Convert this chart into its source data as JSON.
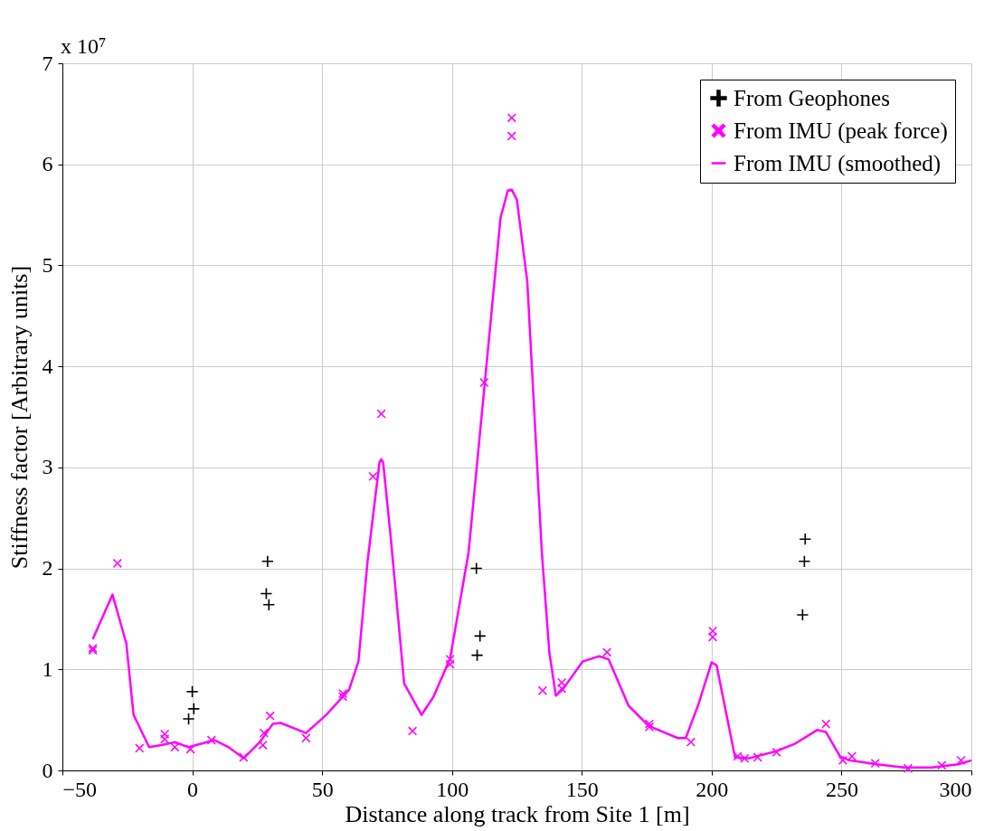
{
  "chart_data": {
    "type": "scatter",
    "xlabel": "Distance along track from Site 1 [m]",
    "ylabel": "Stiffness factor [Arbitrary units]",
    "annotations": [
      "x 10⁷"
    ],
    "xlim": [
      -50,
      300
    ],
    "xticks": [
      -50,
      0,
      50,
      100,
      150,
      200,
      250,
      300
    ],
    "ylim": [
      0,
      7
    ],
    "yticks": [
      0,
      1,
      2,
      3,
      4,
      5,
      6,
      7
    ],
    "grid": true,
    "legend": "top right",
    "series": [
      {
        "name": "From Geophones",
        "type": "scatter",
        "marker": "cross",
        "color": "#000000",
        "x": [
          0,
          0.6,
          -1.4,
          29,
          28.5,
          29.5,
          109.4,
          110.8,
          109.7,
          236,
          235.7,
          235
        ],
        "values": [
          0.78,
          0.61,
          0.51,
          2.07,
          1.75,
          1.64,
          2.0,
          1.33,
          1.14,
          2.29,
          2.07,
          1.54
        ]
      },
      {
        "name": "From IMU (peak force)",
        "type": "scatter",
        "marker": "x",
        "color": "#ff00ff",
        "x": [
          -38.3,
          -38.3,
          -28.8,
          -20.3,
          -10.6,
          -10.6,
          -6.7,
          -0.7,
          7.4,
          19.8,
          27.2,
          27.6,
          30.0,
          43.8,
          58,
          58,
          69.6,
          72.8,
          84.8,
          99.3,
          99.3,
          112.4,
          123,
          123,
          134.9,
          142.3,
          142.3,
          159.7,
          176,
          176,
          192,
          200.4,
          200.4,
          210,
          212.7,
          217.7,
          225,
          244,
          250.5,
          254,
          263,
          275.6,
          288.6,
          296
        ],
        "values": [
          1.19,
          1.21,
          2.05,
          0.22,
          0.36,
          0.31,
          0.23,
          0.21,
          0.3,
          0.13,
          0.25,
          0.37,
          0.54,
          0.32,
          0.73,
          0.76,
          2.91,
          3.53,
          0.39,
          1.1,
          1.05,
          3.84,
          6.46,
          6.28,
          0.79,
          0.87,
          0.81,
          1.17,
          0.46,
          0.43,
          0.28,
          1.38,
          1.32,
          0.14,
          0.12,
          0.13,
          0.18,
          0.46,
          0.1,
          0.14,
          0.07,
          0.02,
          0.05,
          0.1
        ]
      },
      {
        "name": "From IMU (smoothed)",
        "type": "line",
        "marker": "none",
        "color": "#ff00ff",
        "x": [
          -38.3,
          -30.7,
          -25.4,
          -22.6,
          -16.6,
          -12,
          -6.7,
          -1.4,
          8.5,
          14,
          19.8,
          26,
          31,
          34,
          43.8,
          51.6,
          60.4,
          64,
          67.5,
          72.1,
          72.8,
          73.5,
          76.3,
          81.6,
          88.3,
          92.9,
          99.3,
          106.4,
          113.4,
          118.7,
          121.5,
          123,
          125,
          129,
          134.6,
          137.5,
          140,
          142.6,
          150.4,
          156.7,
          160.3,
          168,
          175.8,
          187,
          190,
          194.7,
          200,
          201.9,
          205.4,
          209,
          214.3,
          224.8,
          231.8,
          240.6,
          244,
          249.4,
          253,
          263.6,
          274,
          284.8,
          295,
          300
        ],
        "values": [
          1.3,
          1.74,
          1.26,
          0.55,
          0.23,
          0.25,
          0.28,
          0.23,
          0.3,
          0.23,
          0.12,
          0.28,
          0.46,
          0.47,
          0.37,
          0.55,
          0.8,
          1.08,
          2.07,
          3.05,
          3.08,
          3.05,
          2.34,
          0.86,
          0.55,
          0.73,
          1.11,
          2.16,
          4.04,
          5.47,
          5.74,
          5.75,
          5.65,
          4.84,
          2.16,
          1.17,
          0.74,
          0.8,
          1.08,
          1.13,
          1.1,
          0.64,
          0.44,
          0.32,
          0.32,
          0.64,
          1.07,
          1.04,
          0.59,
          0.13,
          0.12,
          0.19,
          0.26,
          0.4,
          0.38,
          0.14,
          0.1,
          0.06,
          0.03,
          0.03,
          0.06,
          0.1
        ]
      }
    ]
  }
}
